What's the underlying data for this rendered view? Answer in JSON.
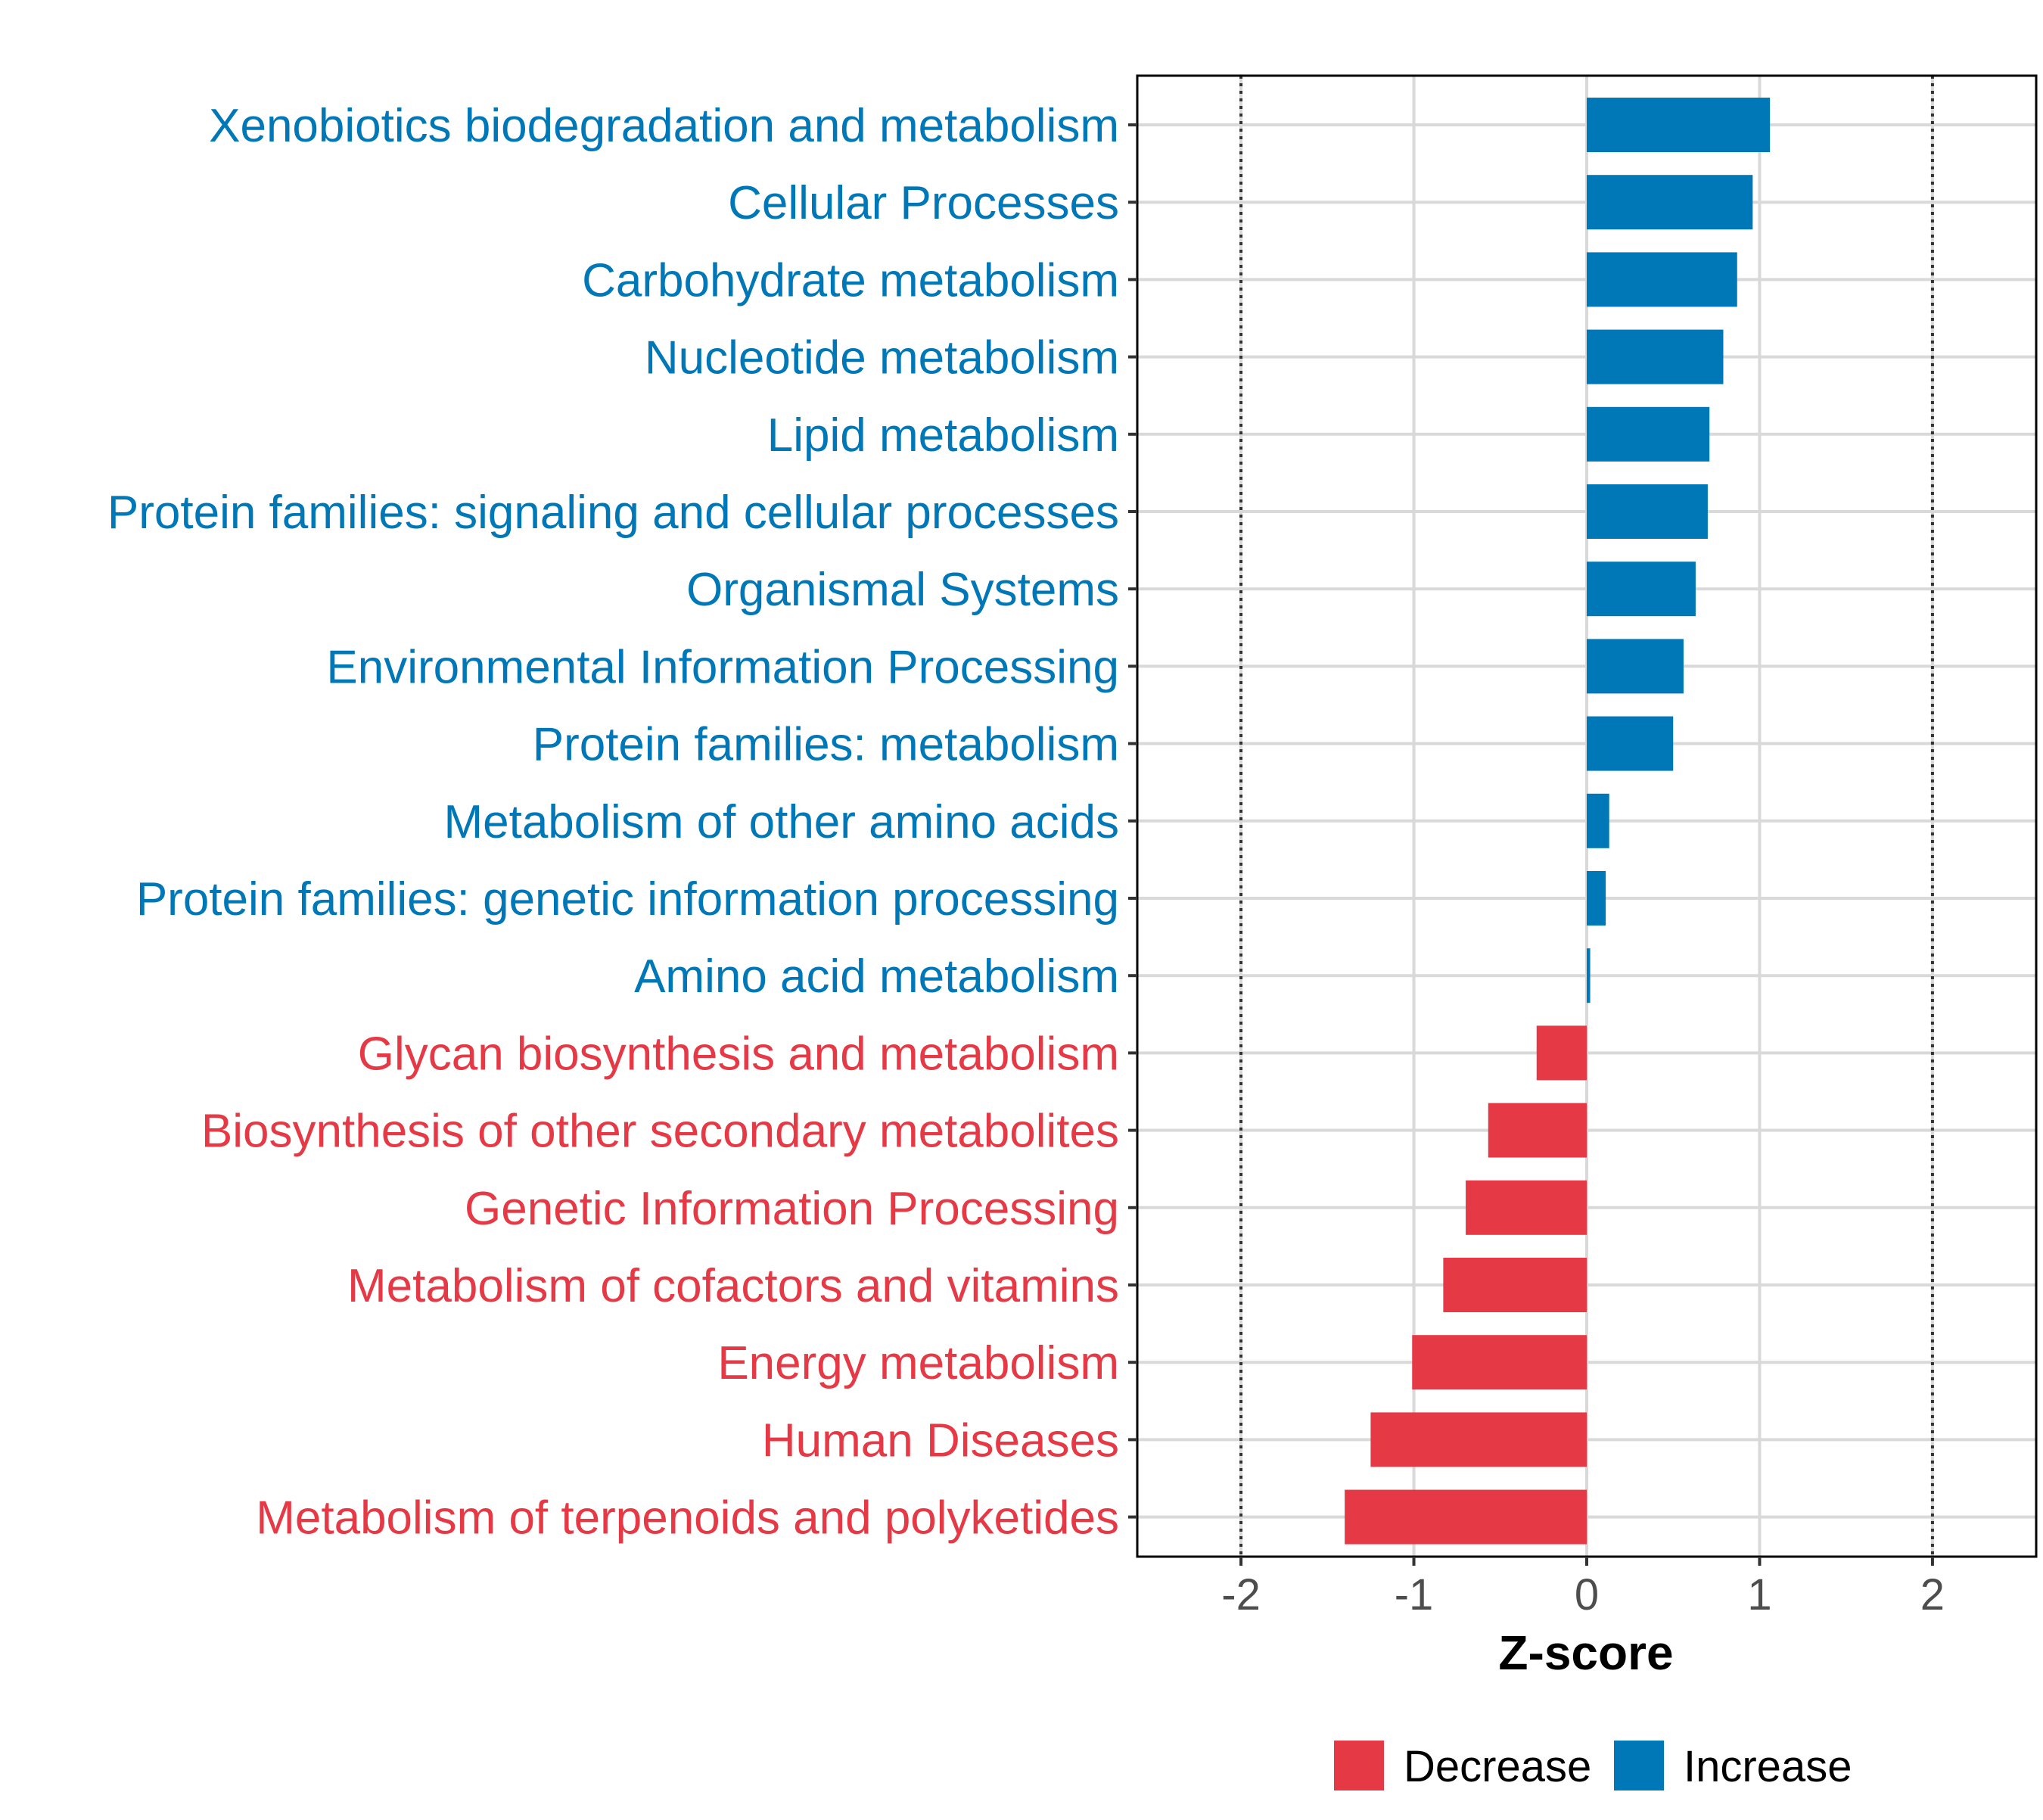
{
  "chart_data": {
    "type": "bar",
    "orientation": "horizontal",
    "title": "",
    "xlabel": "Z-score",
    "ylabel": "",
    "xlim": [
      -2.6,
      2.6
    ],
    "xticks": [
      -2,
      -1,
      0,
      1,
      2
    ],
    "xtick_labels": [
      "-2",
      "-1",
      "0",
      "1",
      "2"
    ],
    "reference_lines": [
      -2,
      2
    ],
    "grid": true,
    "legend": {
      "placement": "bottom",
      "entries": [
        {
          "label": "Decrease",
          "color": "#E63946"
        },
        {
          "label": "Increase",
          "color": "#0077B6"
        }
      ]
    },
    "colors": {
      "Decrease": "#E63946",
      "Increase": "#0077B6"
    },
    "categories": [
      "Xenobiotics biodegradation and metabolism",
      "Cellular Processes",
      "Carbohydrate metabolism",
      "Nucleotide metabolism",
      "Lipid metabolism",
      "Protein families: signaling and cellular processes",
      "Organismal Systems",
      "Environmental Information Processing",
      "Protein families: metabolism",
      "Metabolism of other amino acids",
      "Protein families: genetic information processing",
      "Amino acid metabolism",
      "Glycan biosynthesis and metabolism",
      "Biosynthesis of other secondary metabolites",
      "Genetic Information Processing",
      "Metabolism of cofactors and vitamins",
      "Energy metabolism",
      "Human Diseases",
      "Metabolism of terpenoids and polyketides"
    ],
    "values": [
      1.06,
      0.96,
      0.87,
      0.79,
      0.71,
      0.7,
      0.63,
      0.56,
      0.5,
      0.13,
      0.11,
      0.02,
      -0.29,
      -0.57,
      -0.7,
      -0.83,
      -1.01,
      -1.25,
      -1.4
    ],
    "groups": [
      "Increase",
      "Increase",
      "Increase",
      "Increase",
      "Increase",
      "Increase",
      "Increase",
      "Increase",
      "Increase",
      "Increase",
      "Increase",
      "Increase",
      "Decrease",
      "Decrease",
      "Decrease",
      "Decrease",
      "Decrease",
      "Decrease",
      "Decrease"
    ]
  }
}
